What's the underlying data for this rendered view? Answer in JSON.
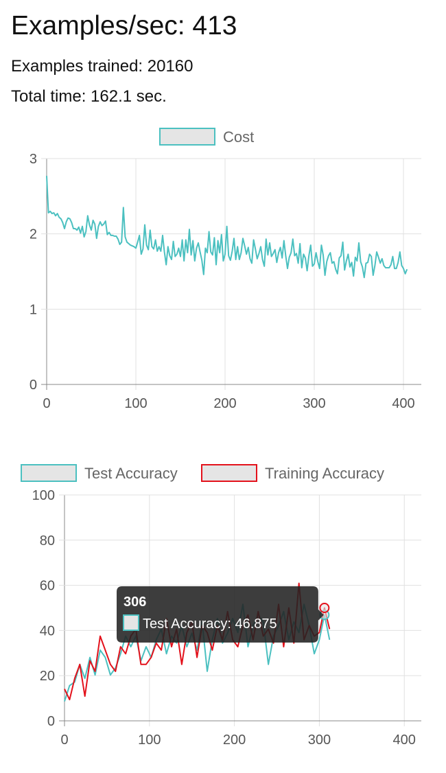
{
  "header": {
    "title": "Examples/sec: 413",
    "examples_trained": "Examples trained: 20160",
    "total_time": "Total time: 162.1 sec."
  },
  "colors": {
    "teal": "#4bc0c0",
    "red": "#e3111b",
    "legend_fill": "#e5e5e5",
    "grid": "#e0e0e0",
    "axis": "#888888",
    "tooltip_bg": "#222222"
  },
  "chart_data": [
    {
      "type": "line",
      "legend": [
        "Cost"
      ],
      "legend_position": "top",
      "grid": true,
      "xlim": [
        0,
        420
      ],
      "ylim": [
        0,
        3
      ],
      "x_ticks": [
        "0",
        "100",
        "200",
        "300",
        "400"
      ],
      "y_ticks": [
        "0",
        "1",
        "2",
        "3"
      ],
      "series": [
        {
          "name": "Cost",
          "color": "#4bc0c0",
          "x_start": 0,
          "x_step": 2,
          "values": [
            2.77,
            2.28,
            2.3,
            2.27,
            2.28,
            2.24,
            2.27,
            2.22,
            2.2,
            2.15,
            2.07,
            2.16,
            2.21,
            2.2,
            2.15,
            2.07,
            2.07,
            2.05,
            2.09,
            2.01,
            2.1,
            1.96,
            2.03,
            2.24,
            2.12,
            2.05,
            2.18,
            2.13,
            1.94,
            2.1,
            2.16,
            2.11,
            2.13,
            2.17,
            1.99,
            2.02,
            1.98,
            1.98,
            1.97,
            1.97,
            1.93,
            1.86,
            1.89,
            2.35,
            1.96,
            1.89,
            1.87,
            1.85,
            1.84,
            1.83,
            1.81,
            1.89,
            1.98,
            1.73,
            1.8,
            2.12,
            1.85,
            1.79,
            2.05,
            1.83,
            1.8,
            1.92,
            1.77,
            1.83,
            1.77,
            1.98,
            1.76,
            1.59,
            1.83,
            1.71,
            1.66,
            1.9,
            1.7,
            1.73,
            1.81,
            1.7,
            1.92,
            1.64,
            1.92,
            1.75,
            2.06,
            1.72,
            1.91,
            1.64,
            1.81,
            1.88,
            1.76,
            1.65,
            1.46,
            1.81,
            1.75,
            2.03,
            1.76,
            1.72,
            1.95,
            1.59,
            1.91,
            1.75,
            1.99,
            1.64,
            1.73,
            2.1,
            1.71,
            1.65,
            1.77,
            1.94,
            1.66,
            1.83,
            1.66,
            1.75,
            1.94,
            1.84,
            1.73,
            1.82,
            1.67,
            1.61,
            1.92,
            1.8,
            1.67,
            1.74,
            1.83,
            1.66,
            1.57,
            1.93,
            1.72,
            1.88,
            1.7,
            1.74,
            1.79,
            1.62,
            1.75,
            1.82,
            1.68,
            1.91,
            1.71,
            1.54,
            1.69,
            1.75,
            1.93,
            1.71,
            1.74,
            1.61,
            1.87,
            1.55,
            1.73,
            1.68,
            1.51,
            1.71,
            1.85,
            1.57,
            1.6,
            1.75,
            1.63,
            1.54,
            1.85,
            1.72,
            1.45,
            1.63,
            1.71,
            1.75,
            1.61,
            1.63,
            1.53,
            1.47,
            1.68,
            1.71,
            1.89,
            1.52,
            1.64,
            1.73,
            1.56,
            1.62,
            1.44,
            1.69,
            1.64,
            1.88,
            1.63,
            1.56,
            1.42,
            1.61,
            1.62,
            1.73,
            1.7,
            1.45,
            1.58,
            1.76,
            1.69,
            1.61,
            1.67,
            1.58,
            1.55,
            1.55,
            1.55,
            1.59,
            1.7,
            1.54,
            1.54,
            1.62,
            1.76,
            1.58,
            1.54,
            1.47,
            1.53
          ]
        }
      ]
    },
    {
      "type": "line",
      "legend": [
        "Test Accuracy",
        "Training Accuracy"
      ],
      "legend_position": "top",
      "grid": true,
      "xlim": [
        0,
        420
      ],
      "ylim": [
        0,
        100
      ],
      "x_ticks": [
        "0",
        "100",
        "200",
        "300",
        "400"
      ],
      "y_ticks": [
        "0",
        "20",
        "40",
        "60",
        "80",
        "100"
      ],
      "x": [
        0,
        6,
        12,
        18,
        24,
        30,
        36,
        42,
        48,
        54,
        60,
        66,
        72,
        78,
        84,
        90,
        96,
        102,
        108,
        114,
        120,
        126,
        132,
        138,
        144,
        150,
        156,
        162,
        168,
        174,
        180,
        186,
        192,
        198,
        204,
        210,
        216,
        222,
        228,
        234,
        240,
        246,
        252,
        258,
        264,
        270,
        276,
        282,
        288,
        294,
        300,
        306,
        312
      ],
      "series": [
        {
          "name": "Test Accuracy",
          "color": "#4bc0c0",
          "values": [
            8.6,
            15.6,
            17.2,
            25.0,
            18.8,
            28.1,
            20.3,
            31.3,
            28.1,
            20.3,
            23.4,
            29.7,
            37.5,
            32.8,
            37.5,
            26.6,
            32.8,
            28.1,
            35.9,
            40.6,
            29.7,
            37.5,
            34.4,
            42.2,
            32.8,
            38.8,
            31.3,
            43.8,
            21.9,
            35.9,
            45.3,
            34.4,
            38.8,
            45.3,
            39.1,
            51.6,
            32.8,
            42.2,
            46.9,
            43.8,
            25.0,
            37.5,
            42.2,
            48.4,
            35.9,
            43.8,
            39.1,
            51.6,
            42.2,
            29.7,
            35.9,
            46.9,
            35.9
          ]
        },
        {
          "name": "Training Accuracy",
          "color": "#e3111b",
          "values": [
            14.1,
            9.4,
            18.8,
            25.0,
            10.9,
            26.6,
            21.9,
            37.5,
            31.3,
            25.0,
            21.9,
            32.8,
            29.7,
            37.5,
            40.6,
            25.0,
            25.0,
            28.1,
            34.4,
            31.3,
            45.3,
            32.8,
            40.6,
            25.0,
            39.1,
            43.8,
            28.1,
            42.2,
            39.1,
            31.3,
            42.2,
            35.9,
            48.4,
            35.9,
            32.8,
            42.2,
            46.9,
            35.9,
            48.4,
            37.5,
            40.6,
            34.4,
            51.6,
            32.8,
            50.0,
            34.4,
            60.9,
            35.9,
            42.2,
            37.5,
            39.1,
            50.0,
            40.6
          ]
        }
      ],
      "tooltip": {
        "title": "306",
        "body": "Test Accuracy: 46.875",
        "point_index": 51
      }
    }
  ]
}
